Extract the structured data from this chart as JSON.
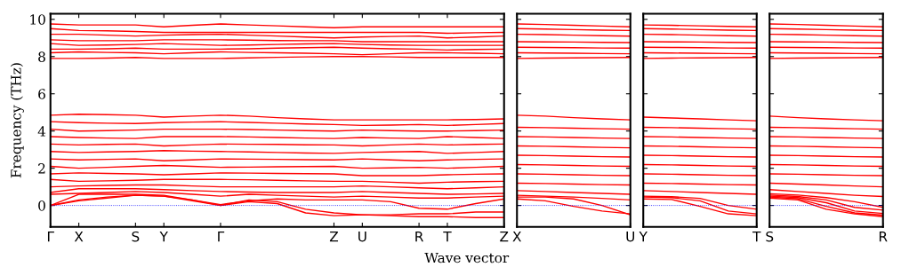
{
  "chart_data": [
    {
      "type": "line",
      "ylabel": "Frequency (THz)",
      "xlabel": "Wave vector",
      "ylim": [
        -1.15,
        10.3
      ],
      "categories": [
        "Γ",
        "X",
        null,
        "S",
        "Y",
        null,
        "Γ",
        null,
        null,
        null,
        "Z",
        "U",
        null,
        "R",
        "T",
        null,
        "Z"
      ],
      "yticks": [
        0,
        2,
        4,
        6,
        8,
        10
      ],
      "ref_lines": [
        {
          "axis": "y",
          "value": 0,
          "color": "#0000ff",
          "line_style": "dotted"
        }
      ],
      "series": [
        {
          "color": "#ff0000",
          "values": [
            0,
            0.3,
            0.45,
            0.55,
            0.5,
            0.25,
            0,
            0.2,
            0.1,
            -0.4,
            -0.55,
            -0.5,
            -0.55,
            -0.6,
            -0.6,
            -0.65,
            -0.65
          ]
        },
        {
          "color": "#ff0000",
          "values": [
            0,
            0.6,
            0.6,
            0.6,
            0.55,
            0.3,
            0,
            0.3,
            0.2,
            -0.2,
            -0.4,
            -0.5,
            -0.5,
            -0.45,
            -0.45,
            -0.35,
            -0.35
          ]
        },
        {
          "color": "#ff0000",
          "values": [
            0,
            0.25,
            0.4,
            0.55,
            0.5,
            0.3,
            0.05,
            0.25,
            0.35,
            0.3,
            0.3,
            0.3,
            0.2,
            -0.15,
            -0.2,
            0.1,
            0.35
          ]
        },
        {
          "color": "#ff0000",
          "values": [
            0.6,
            0.65,
            0.7,
            0.75,
            0.7,
            0.6,
            0.5,
            0.6,
            0.55,
            0.5,
            0.45,
            0.5,
            0.45,
            0.4,
            0.4,
            0.45,
            0.5
          ]
        },
        {
          "color": "#ff0000",
          "values": [
            0.7,
            0.9,
            0.9,
            0.9,
            0.85,
            0.8,
            0.75,
            0.72,
            0.7,
            0.7,
            0.7,
            0.75,
            0.7,
            0.65,
            0.6,
            0.62,
            0.65
          ]
        },
        {
          "color": "#ff0000",
          "values": [
            1.0,
            1.05,
            1.08,
            1.1,
            1.1,
            1.05,
            1.0,
            1.0,
            1.0,
            1.0,
            1.0,
            1.05,
            1.0,
            0.95,
            0.9,
            0.95,
            1.0
          ]
        },
        {
          "color": "#ff0000",
          "values": [
            1.4,
            1.3,
            1.32,
            1.35,
            1.4,
            1.4,
            1.4,
            1.38,
            1.35,
            1.32,
            1.3,
            1.3,
            1.25,
            1.2,
            1.25,
            1.28,
            1.3
          ]
        },
        {
          "color": "#ff0000",
          "values": [
            1.7,
            1.75,
            1.72,
            1.7,
            1.65,
            1.7,
            1.75,
            1.74,
            1.72,
            1.71,
            1.7,
            1.6,
            1.6,
            1.6,
            1.65,
            1.68,
            1.7
          ]
        },
        {
          "color": "#ff0000",
          "values": [
            2.1,
            2.0,
            2.05,
            2.1,
            2.15,
            2.1,
            2.05,
            2.06,
            2.08,
            2.09,
            2.1,
            2.0,
            2.02,
            2.05,
            2.0,
            2.05,
            2.1
          ]
        },
        {
          "color": "#ff0000",
          "values": [
            2.5,
            2.45,
            2.48,
            2.5,
            2.4,
            2.45,
            2.5,
            2.49,
            2.48,
            2.46,
            2.45,
            2.5,
            2.45,
            2.4,
            2.45,
            2.48,
            2.5
          ]
        },
        {
          "color": "#ff0000",
          "values": [
            2.9,
            2.85,
            2.88,
            2.9,
            2.95,
            2.92,
            2.9,
            2.88,
            2.85,
            2.82,
            2.8,
            2.85,
            2.88,
            2.9,
            2.8,
            2.85,
            2.9
          ]
        },
        {
          "color": "#ff0000",
          "values": [
            3.3,
            3.25,
            3.28,
            3.3,
            3.2,
            3.25,
            3.3,
            3.29,
            3.28,
            3.26,
            3.25,
            3.2,
            3.25,
            3.3,
            3.25,
            3.28,
            3.3
          ]
        },
        {
          "color": "#ff0000",
          "values": [
            3.7,
            3.65,
            3.62,
            3.6,
            3.7,
            3.7,
            3.7,
            3.68,
            3.65,
            3.62,
            3.6,
            3.65,
            3.62,
            3.6,
            3.7,
            3.65,
            3.6
          ]
        },
        {
          "color": "#ff0000",
          "values": [
            4.1,
            4.0,
            4.02,
            4.05,
            4.1,
            4.1,
            4.1,
            4.08,
            4.05,
            4.02,
            4.0,
            4.05,
            4.02,
            4.0,
            4.0,
            4.02,
            4.05
          ]
        },
        {
          "color": "#ff0000",
          "values": [
            4.5,
            4.45,
            4.42,
            4.4,
            4.45,
            4.48,
            4.5,
            4.46,
            4.42,
            4.38,
            4.35,
            4.3,
            4.32,
            4.35,
            4.3,
            4.35,
            4.4
          ]
        },
        {
          "color": "#ff0000",
          "values": [
            4.85,
            4.9,
            4.88,
            4.85,
            4.75,
            4.8,
            4.85,
            4.8,
            4.72,
            4.65,
            4.6,
            4.6,
            4.6,
            4.6,
            4.6,
            4.62,
            4.65
          ]
        },
        {
          "color": "#ff0000",
          "values": [
            7.9,
            7.9,
            7.92,
            7.95,
            7.9,
            7.9,
            7.9,
            7.93,
            7.96,
            7.98,
            8.0,
            8.0,
            7.98,
            7.95,
            7.95,
            7.95,
            7.95
          ]
        },
        {
          "color": "#ff0000",
          "values": [
            8.2,
            8.25,
            8.22,
            8.2,
            8.15,
            8.2,
            8.25,
            8.22,
            8.2,
            8.18,
            8.15,
            8.1,
            8.15,
            8.2,
            8.2,
            8.18,
            8.15
          ]
        },
        {
          "color": "#ff0000",
          "values": [
            8.4,
            8.4,
            8.42,
            8.45,
            8.4,
            8.4,
            8.4,
            8.42,
            8.45,
            8.48,
            8.5,
            8.45,
            8.42,
            8.4,
            8.35,
            8.38,
            8.4
          ]
        },
        {
          "color": "#ff0000",
          "values": [
            8.7,
            8.6,
            8.62,
            8.65,
            8.7,
            8.65,
            8.6,
            8.62,
            8.65,
            8.68,
            8.7,
            8.65,
            8.62,
            8.6,
            8.6,
            8.6,
            8.6
          ]
        },
        {
          "color": "#ff0000",
          "values": [
            8.9,
            8.85,
            8.85,
            8.85,
            8.9,
            8.9,
            8.9,
            8.88,
            8.86,
            8.85,
            8.85,
            8.8,
            8.8,
            8.8,
            8.8,
            8.8,
            8.8
          ]
        },
        {
          "color": "#ff0000",
          "values": [
            9.2,
            9.2,
            9.15,
            9.1,
            9.15,
            9.18,
            9.2,
            9.15,
            9.1,
            9.05,
            9.0,
            9.05,
            9.08,
            9.1,
            9.0,
            9.05,
            9.1
          ]
        },
        {
          "color": "#ff0000",
          "values": [
            9.5,
            9.4,
            9.38,
            9.35,
            9.3,
            9.3,
            9.3,
            9.3,
            9.3,
            9.3,
            9.3,
            9.3,
            9.3,
            9.3,
            9.25,
            9.28,
            9.3
          ]
        },
        {
          "color": "#ff0000",
          "values": [
            9.75,
            9.7,
            9.7,
            9.7,
            9.6,
            9.68,
            9.75,
            9.7,
            9.65,
            9.6,
            9.55,
            9.6,
            9.6,
            9.6,
            9.6,
            9.6,
            9.6
          ]
        }
      ]
    },
    {
      "type": "line",
      "ylim": [
        -1.15,
        10.3
      ],
      "tick_labels": "x",
      "categories": [
        "X",
        null,
        null,
        null,
        "U"
      ],
      "yticks": [
        0,
        2,
        4,
        6,
        8,
        10
      ],
      "ref_lines": [
        {
          "axis": "y",
          "value": 0,
          "color": "#0000ff",
          "line_style": "dotted"
        }
      ],
      "series": [
        {
          "color": "#ff0000",
          "values": [
            0.35,
            0.25,
            -0.05,
            -0.3,
            -0.45
          ]
        },
        {
          "color": "#ff0000",
          "values": [
            0.45,
            0.45,
            0.35,
            0.0,
            -0.5
          ]
        },
        {
          "color": "#ff0000",
          "values": [
            0.55,
            0.5,
            0.45,
            0.38,
            0.3
          ]
        },
        {
          "color": "#ff0000",
          "values": [
            0.8,
            0.75,
            0.7,
            0.65,
            0.6
          ]
        },
        {
          "color": "#ff0000",
          "values": [
            1.2,
            1.18,
            1.15,
            1.12,
            1.1
          ]
        },
        {
          "color": "#ff0000",
          "values": [
            1.7,
            1.68,
            1.65,
            1.62,
            1.6
          ]
        },
        {
          "color": "#ff0000",
          "values": [
            2.2,
            2.18,
            2.15,
            2.12,
            2.1
          ]
        },
        {
          "color": "#ff0000",
          "values": [
            2.7,
            2.68,
            2.65,
            2.62,
            2.6
          ]
        },
        {
          "color": "#ff0000",
          "values": [
            3.2,
            3.18,
            3.15,
            3.12,
            3.1
          ]
        },
        {
          "color": "#ff0000",
          "values": [
            3.7,
            3.68,
            3.65,
            3.62,
            3.6
          ]
        },
        {
          "color": "#ff0000",
          "values": [
            4.2,
            4.18,
            4.15,
            4.12,
            4.1
          ]
        },
        {
          "color": "#ff0000",
          "values": [
            4.85,
            4.8,
            4.72,
            4.65,
            4.6
          ]
        },
        {
          "color": "#ff0000",
          "values": [
            7.9,
            7.92,
            7.93,
            7.94,
            7.95
          ]
        },
        {
          "color": "#ff0000",
          "values": [
            8.2,
            8.19,
            8.18,
            8.16,
            8.15
          ]
        },
        {
          "color": "#ff0000",
          "values": [
            8.5,
            8.49,
            8.48,
            8.46,
            8.45
          ]
        },
        {
          "color": "#ff0000",
          "values": [
            8.8,
            8.79,
            8.78,
            8.76,
            8.75
          ]
        },
        {
          "color": "#ff0000",
          "values": [
            9.2,
            9.18,
            9.15,
            9.12,
            9.1
          ]
        },
        {
          "color": "#ff0000",
          "values": [
            9.5,
            9.48,
            9.45,
            9.42,
            9.4
          ]
        },
        {
          "color": "#ff0000",
          "values": [
            9.75,
            9.72,
            9.68,
            9.64,
            9.6
          ]
        }
      ]
    },
    {
      "type": "line",
      "ylim": [
        -1.15,
        10.3
      ],
      "tick_labels": "x",
      "categories": [
        "Y",
        null,
        null,
        null,
        "T"
      ],
      "yticks": [
        0,
        2,
        4,
        6,
        8,
        10
      ],
      "ref_lines": [
        {
          "axis": "y",
          "value": 0,
          "color": "#0000ff",
          "line_style": "dotted"
        }
      ],
      "series": [
        {
          "color": "#ff0000",
          "values": [
            0.35,
            0.32,
            -0.05,
            -0.45,
            -0.55
          ]
        },
        {
          "color": "#ff0000",
          "values": [
            0.45,
            0.42,
            0.25,
            -0.3,
            -0.45
          ]
        },
        {
          "color": "#ff0000",
          "values": [
            0.5,
            0.47,
            0.38,
            0.0,
            -0.2
          ]
        },
        {
          "color": "#ff0000",
          "values": [
            0.8,
            0.75,
            0.7,
            0.65,
            0.6
          ]
        },
        {
          "color": "#ff0000",
          "values": [
            1.2,
            1.18,
            1.15,
            1.12,
            1.1
          ]
        },
        {
          "color": "#ff0000",
          "values": [
            1.7,
            1.68,
            1.65,
            1.62,
            1.6
          ]
        },
        {
          "color": "#ff0000",
          "values": [
            2.2,
            2.18,
            2.15,
            2.12,
            2.1
          ]
        },
        {
          "color": "#ff0000",
          "values": [
            2.7,
            2.68,
            2.65,
            2.62,
            2.6
          ]
        },
        {
          "color": "#ff0000",
          "values": [
            3.2,
            3.18,
            3.15,
            3.12,
            3.1
          ]
        },
        {
          "color": "#ff0000",
          "values": [
            3.7,
            3.68,
            3.65,
            3.62,
            3.6
          ]
        },
        {
          "color": "#ff0000",
          "values": [
            4.2,
            4.18,
            4.15,
            4.12,
            4.1
          ]
        },
        {
          "color": "#ff0000",
          "values": [
            4.75,
            4.7,
            4.65,
            4.6,
            4.55
          ]
        },
        {
          "color": "#ff0000",
          "values": [
            7.9,
            7.92,
            7.93,
            7.94,
            7.95
          ]
        },
        {
          "color": "#ff0000",
          "values": [
            8.2,
            8.19,
            8.18,
            8.16,
            8.15
          ]
        },
        {
          "color": "#ff0000",
          "values": [
            8.5,
            8.49,
            8.48,
            8.46,
            8.45
          ]
        },
        {
          "color": "#ff0000",
          "values": [
            8.8,
            8.79,
            8.78,
            8.76,
            8.75
          ]
        },
        {
          "color": "#ff0000",
          "values": [
            9.2,
            9.18,
            9.15,
            9.12,
            9.1
          ]
        },
        {
          "color": "#ff0000",
          "values": [
            9.5,
            9.48,
            9.45,
            9.42,
            9.4
          ]
        },
        {
          "color": "#ff0000",
          "values": [
            9.7,
            9.68,
            9.65,
            9.62,
            9.6
          ]
        }
      ]
    },
    {
      "type": "line",
      "ylim": [
        -1.15,
        10.3
      ],
      "tick_labels": "x",
      "categories": [
        "S",
        null,
        null,
        null,
        "R"
      ],
      "yticks": [
        0,
        2,
        4,
        6,
        8,
        10
      ],
      "ref_lines": [
        {
          "axis": "y",
          "value": 0,
          "color": "#0000ff",
          "line_style": "dotted"
        }
      ],
      "series": [
        {
          "color": "#ff0000",
          "values": [
            0.4,
            0.3,
            -0.2,
            -0.45,
            -0.6
          ]
        },
        {
          "color": "#ff0000",
          "values": [
            0.45,
            0.36,
            -0.05,
            -0.4,
            -0.52
          ]
        },
        {
          "color": "#ff0000",
          "values": [
            0.5,
            0.42,
            0.15,
            -0.3,
            -0.43
          ]
        },
        {
          "color": "#ff0000",
          "values": [
            0.56,
            0.48,
            0.3,
            -0.1,
            -0.25
          ]
        },
        {
          "color": "#ff0000",
          "values": [
            0.63,
            0.56,
            0.42,
            0.2,
            -0.1
          ]
        },
        {
          "color": "#ff0000",
          "values": [
            0.85,
            0.75,
            0.65,
            0.55,
            0.48
          ]
        },
        {
          "color": "#ff0000",
          "values": [
            1.2,
            1.15,
            1.1,
            1.05,
            1.0
          ]
        },
        {
          "color": "#ff0000",
          "values": [
            1.7,
            1.68,
            1.65,
            1.62,
            1.6
          ]
        },
        {
          "color": "#ff0000",
          "values": [
            2.2,
            2.18,
            2.15,
            2.12,
            2.1
          ]
        },
        {
          "color": "#ff0000",
          "values": [
            2.7,
            2.68,
            2.65,
            2.62,
            2.6
          ]
        },
        {
          "color": "#ff0000",
          "values": [
            3.2,
            3.18,
            3.15,
            3.12,
            3.1
          ]
        },
        {
          "color": "#ff0000",
          "values": [
            3.7,
            3.68,
            3.65,
            3.62,
            3.6
          ]
        },
        {
          "color": "#ff0000",
          "values": [
            4.2,
            4.18,
            4.15,
            4.12,
            4.1
          ]
        },
        {
          "color": "#ff0000",
          "values": [
            4.8,
            4.72,
            4.65,
            4.6,
            4.55
          ]
        },
        {
          "color": "#ff0000",
          "values": [
            7.9,
            7.92,
            7.93,
            7.94,
            7.95
          ]
        },
        {
          "color": "#ff0000",
          "values": [
            8.2,
            8.19,
            8.18,
            8.16,
            8.15
          ]
        },
        {
          "color": "#ff0000",
          "values": [
            8.5,
            8.49,
            8.48,
            8.46,
            8.45
          ]
        },
        {
          "color": "#ff0000",
          "values": [
            8.8,
            8.79,
            8.78,
            8.76,
            8.75
          ]
        },
        {
          "color": "#ff0000",
          "values": [
            9.2,
            9.18,
            9.15,
            9.12,
            9.1
          ]
        },
        {
          "color": "#ff0000",
          "values": [
            9.5,
            9.48,
            9.45,
            9.42,
            9.4
          ]
        },
        {
          "color": "#ff0000",
          "values": [
            9.75,
            9.72,
            9.68,
            9.64,
            9.6
          ]
        }
      ]
    }
  ]
}
